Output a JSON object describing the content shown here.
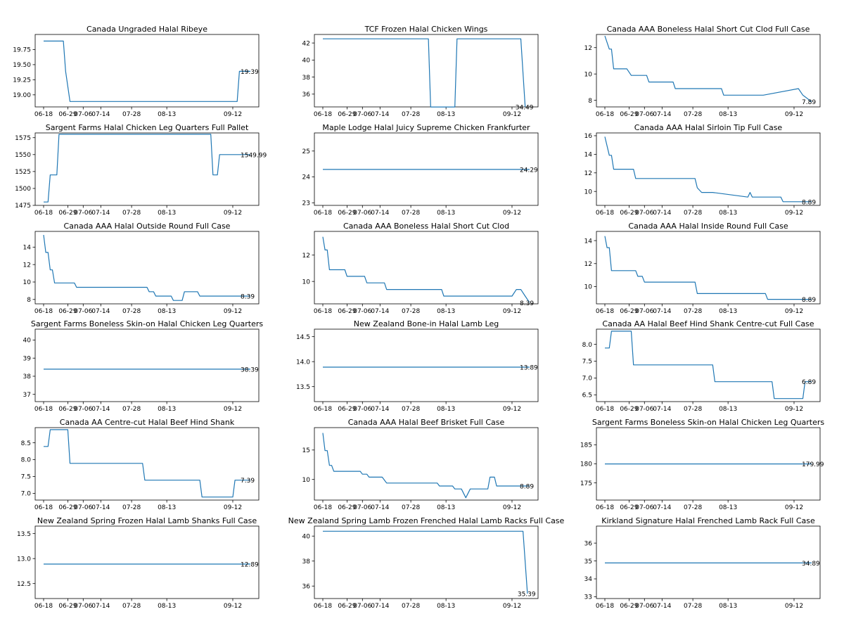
{
  "figure": {
    "line_color": "#1f77b4"
  },
  "chart_data": [
    {
      "type": "line",
      "title": "Canada Ungraded Halal Ribeye",
      "x_ticks": [
        "06-18",
        "06-29",
        "07-06",
        "07-14",
        "07-28",
        "08-13",
        "09-12"
      ],
      "ylim": [
        18.8,
        20.0
      ],
      "y_ticks": [
        19.0,
        19.25,
        19.5,
        19.75
      ],
      "y_decimals": 2,
      "end_label": "19.39",
      "x": [
        "06-18",
        "06-27",
        "06-28",
        "06-30",
        "09-14",
        "09-15",
        "09-20"
      ],
      "y": [
        19.89,
        19.89,
        19.39,
        18.89,
        18.89,
        19.39,
        19.39
      ]
    },
    {
      "type": "line",
      "title": "TCF Frozen Halal Chicken Wings",
      "x_ticks": [
        "06-18",
        "06-29",
        "07-06",
        "07-14",
        "07-28",
        "08-13",
        "09-12"
      ],
      "ylim": [
        34.5,
        43.0
      ],
      "y_ticks": [
        36,
        38,
        40,
        42
      ],
      "y_decimals": 0,
      "end_label": "34.49",
      "x": [
        "06-18",
        "08-05",
        "08-06",
        "08-17",
        "08-18",
        "09-16",
        "09-18"
      ],
      "y": [
        42.49,
        42.49,
        34.49,
        34.49,
        42.49,
        42.49,
        34.49
      ]
    },
    {
      "type": "line",
      "title": "Canada AAA Boneless Halal Short Cut Clod Full Case",
      "x_ticks": [
        "06-18",
        "06-29",
        "07-06",
        "07-14",
        "07-28",
        "08-13",
        "09-12"
      ],
      "ylim": [
        7.5,
        13.0
      ],
      "y_ticks": [
        8,
        10,
        12
      ],
      "y_decimals": 0,
      "end_label": "7.89",
      "x": [
        "06-18",
        "06-20",
        "06-21",
        "06-22",
        "06-28",
        "06-30",
        "07-07",
        "07-08",
        "07-19",
        "07-20",
        "08-10",
        "08-11",
        "08-29",
        "09-14",
        "09-16",
        "09-20"
      ],
      "y": [
        12.89,
        11.89,
        11.89,
        10.39,
        10.39,
        9.89,
        9.89,
        9.39,
        9.39,
        8.89,
        8.89,
        8.39,
        8.39,
        8.89,
        8.39,
        7.89
      ]
    },
    {
      "type": "line",
      "title": "Sargent Farms Halal Chicken Leg Quarters Full Pallet",
      "x_ticks": [
        "06-18",
        "06-29",
        "07-06",
        "07-14",
        "07-28",
        "08-13",
        "09-12"
      ],
      "ylim": [
        1475,
        1582
      ],
      "y_ticks": [
        1475,
        1500,
        1525,
        1550,
        1575
      ],
      "y_decimals": 0,
      "end_label": "1549.99",
      "x": [
        "06-18",
        "06-20",
        "06-21",
        "06-24",
        "06-25",
        "09-02",
        "09-03",
        "09-05",
        "09-06",
        "09-20"
      ],
      "y": [
        1479.99,
        1479.99,
        1519.99,
        1519.99,
        1579.99,
        1579.99,
        1519.99,
        1519.99,
        1549.99,
        1549.99
      ]
    },
    {
      "type": "line",
      "title": "Maple Lodge Halal Juicy Supreme Chicken Frankfurter",
      "x_ticks": [
        "06-18",
        "06-29",
        "07-06",
        "07-14",
        "07-28",
        "08-13",
        "09-12"
      ],
      "ylim": [
        22.9,
        25.7
      ],
      "y_ticks": [
        23,
        24,
        25
      ],
      "y_decimals": 0,
      "end_label": "24.29",
      "x": [
        "06-18",
        "09-20"
      ],
      "y": [
        24.29,
        24.29
      ]
    },
    {
      "type": "line",
      "title": "Canada AAA Halal Sirloin Tip Full Case",
      "x_ticks": [
        "06-18",
        "06-29",
        "07-06",
        "07-14",
        "07-28",
        "08-13",
        "09-12"
      ],
      "ylim": [
        8.5,
        16.3
      ],
      "y_ticks": [
        10,
        12,
        14,
        16
      ],
      "y_decimals": 0,
      "end_label": "8.89",
      "x": [
        "06-18",
        "06-20",
        "06-21",
        "06-22",
        "06-23",
        "07-01",
        "07-02",
        "07-29",
        "07-30",
        "08-01",
        "08-06",
        "08-22",
        "08-23",
        "08-24",
        "08-25",
        "09-06",
        "09-07",
        "09-20"
      ],
      "y": [
        15.89,
        13.89,
        13.89,
        12.39,
        12.39,
        12.39,
        11.39,
        11.39,
        10.39,
        9.89,
        9.89,
        9.39,
        9.89,
        9.39,
        9.39,
        9.39,
        8.89,
        8.89
      ]
    },
    {
      "type": "line",
      "title": "Canada AAA Halal Outside Round Full Case",
      "x_ticks": [
        "06-18",
        "06-29",
        "07-06",
        "07-14",
        "07-28",
        "08-13",
        "09-12"
      ],
      "ylim": [
        7.5,
        15.8
      ],
      "y_ticks": [
        8,
        10,
        12,
        14
      ],
      "y_decimals": 0,
      "end_label": "8.39",
      "x": [
        "06-18",
        "06-19",
        "06-20",
        "06-21",
        "06-22",
        "06-23",
        "07-02",
        "07-03",
        "08-04",
        "08-05",
        "08-07",
        "08-08",
        "08-15",
        "08-16",
        "08-20",
        "08-21",
        "08-27",
        "08-28",
        "09-20"
      ],
      "y": [
        15.39,
        13.39,
        13.39,
        11.39,
        11.39,
        9.89,
        9.89,
        9.39,
        9.39,
        8.89,
        8.89,
        8.39,
        8.39,
        7.89,
        7.89,
        8.89,
        8.89,
        8.39,
        8.39
      ]
    },
    {
      "type": "line",
      "title": "Canada AAA Boneless Halal Short Cut Clod",
      "x_ticks": [
        "06-18",
        "06-29",
        "07-06",
        "07-14",
        "07-28",
        "08-13",
        "09-12"
      ],
      "ylim": [
        8.3,
        13.8
      ],
      "y_ticks": [
        10,
        12
      ],
      "y_decimals": 0,
      "end_label": "8.39",
      "x": [
        "06-18",
        "06-19",
        "06-20",
        "06-21",
        "06-28",
        "06-29",
        "07-07",
        "07-08",
        "07-16",
        "07-17",
        "08-11",
        "08-12",
        "09-12",
        "09-14",
        "09-16",
        "09-18",
        "09-20"
      ],
      "y": [
        13.39,
        12.39,
        12.39,
        10.89,
        10.89,
        10.39,
        10.39,
        9.89,
        9.89,
        9.39,
        9.39,
        8.89,
        8.89,
        9.39,
        9.39,
        8.89,
        8.39
      ]
    },
    {
      "type": "line",
      "title": "Canada AAA Halal Inside Round Full Case",
      "x_ticks": [
        "06-18",
        "06-29",
        "07-06",
        "07-14",
        "07-28",
        "08-13",
        "09-12"
      ],
      "ylim": [
        8.5,
        14.8
      ],
      "y_ticks": [
        10,
        12,
        14
      ],
      "y_decimals": 0,
      "end_label": "8.89",
      "x": [
        "06-18",
        "06-19",
        "06-20",
        "06-21",
        "07-02",
        "07-03",
        "07-05",
        "07-06",
        "07-29",
        "07-30",
        "08-30",
        "08-31",
        "09-20"
      ],
      "y": [
        14.39,
        13.39,
        13.39,
        11.39,
        11.39,
        10.89,
        10.89,
        10.39,
        10.39,
        9.39,
        9.39,
        8.89,
        8.89
      ]
    },
    {
      "type": "line",
      "title": "Sargent Farms Boneless Skin-on Halal Chicken Leg Quarters",
      "x_ticks": [
        "06-18",
        "06-29",
        "07-06",
        "07-14",
        "07-28",
        "08-13",
        "09-12"
      ],
      "ylim": [
        36.6,
        40.6
      ],
      "y_ticks": [
        37,
        38,
        39,
        40
      ],
      "y_decimals": 0,
      "end_label": "38.39",
      "x": [
        "06-18",
        "09-20"
      ],
      "y": [
        38.39,
        38.39
      ]
    },
    {
      "type": "line",
      "title": "New Zealand Bone-in Halal Lamb Leg",
      "x_ticks": [
        "06-18",
        "06-29",
        "07-06",
        "07-14",
        "07-28",
        "08-13",
        "09-12"
      ],
      "ylim": [
        13.2,
        14.65
      ],
      "y_ticks": [
        13.5,
        14.0,
        14.5
      ],
      "y_decimals": 1,
      "end_label": "13.89",
      "x": [
        "06-18",
        "09-20"
      ],
      "y": [
        13.89,
        13.89
      ]
    },
    {
      "type": "line",
      "title": "Canada AA Halal Beef Hind Shank Centre-cut Full Case",
      "x_ticks": [
        "06-18",
        "06-29",
        "07-06",
        "07-14",
        "07-28",
        "08-13",
        "09-12"
      ],
      "ylim": [
        6.3,
        8.45
      ],
      "y_ticks": [
        6.5,
        7.0,
        7.5,
        8.0
      ],
      "y_decimals": 1,
      "end_label": "6.89",
      "x": [
        "06-18",
        "06-20",
        "06-21",
        "06-30",
        "07-01",
        "08-06",
        "08-07",
        "09-02",
        "09-03",
        "09-16",
        "09-17",
        "09-20"
      ],
      "y": [
        7.89,
        7.89,
        8.39,
        8.39,
        7.39,
        7.39,
        6.89,
        6.89,
        6.39,
        6.39,
        6.89,
        6.89
      ]
    },
    {
      "type": "line",
      "title": "Canada AA Centre-cut Halal Beef Hind Shank",
      "x_ticks": [
        "06-18",
        "06-29",
        "07-06",
        "07-14",
        "07-28",
        "08-13",
        "09-12"
      ],
      "ylim": [
        6.8,
        8.95
      ],
      "y_ticks": [
        7.0,
        7.5,
        8.0,
        8.5
      ],
      "y_decimals": 1,
      "end_label": "7.39",
      "x": [
        "06-18",
        "06-20",
        "06-21",
        "06-29",
        "06-30",
        "08-02",
        "08-03",
        "08-28",
        "08-29",
        "09-12",
        "09-13",
        "09-20"
      ],
      "y": [
        8.39,
        8.39,
        8.89,
        8.89,
        7.89,
        7.89,
        7.39,
        7.39,
        6.89,
        6.89,
        7.39,
        7.39
      ]
    },
    {
      "type": "line",
      "title": "Canada AAA Halal Beef Brisket Full Case",
      "x_ticks": [
        "06-18",
        "06-29",
        "07-06",
        "07-14",
        "07-28",
        "08-13",
        "09-12"
      ],
      "ylim": [
        6.5,
        18.8
      ],
      "y_ticks": [
        10,
        15
      ],
      "y_decimals": 0,
      "end_label": "8.89",
      "x": [
        "06-18",
        "06-19",
        "06-20",
        "06-21",
        "06-22",
        "06-23",
        "06-24",
        "07-05",
        "07-06",
        "07-08",
        "07-09",
        "07-15",
        "07-16",
        "07-17",
        "08-09",
        "08-10",
        "08-16",
        "08-17",
        "08-20",
        "08-22",
        "08-24",
        "09-01",
        "09-02",
        "09-04",
        "09-05",
        "09-06",
        "09-07",
        "09-20"
      ],
      "y": [
        17.89,
        14.89,
        14.89,
        12.39,
        12.39,
        11.39,
        11.39,
        11.39,
        10.89,
        10.89,
        10.39,
        10.39,
        9.89,
        9.39,
        9.39,
        8.89,
        8.89,
        8.39,
        8.39,
        6.89,
        8.39,
        8.39,
        10.39,
        10.39,
        8.89,
        8.89,
        8.89,
        8.89
      ]
    },
    {
      "type": "line",
      "title": "Sargent Farms Boneless Skin-on Halal Chicken Leg Quarters",
      "x_ticks": [
        "06-18",
        "06-29",
        "07-06",
        "07-14",
        "07-28",
        "08-13",
        "09-12"
      ],
      "ylim": [
        170.5,
        189.5
      ],
      "y_ticks": [
        175,
        180,
        185
      ],
      "y_decimals": 0,
      "end_label": "179.99",
      "x": [
        "06-18",
        "09-20"
      ],
      "y": [
        179.99,
        179.99
      ]
    },
    {
      "type": "line",
      "title": "New Zealand Spring Frozen Halal Lamb Shanks Full Case",
      "x_ticks": [
        "06-18",
        "06-29",
        "07-06",
        "07-14",
        "07-28",
        "08-13",
        "09-12"
      ],
      "ylim": [
        12.2,
        13.65
      ],
      "y_ticks": [
        12.5,
        13.0,
        13.5
      ],
      "y_decimals": 1,
      "end_label": "12.89",
      "x": [
        "06-18",
        "09-20"
      ],
      "y": [
        12.89,
        12.89
      ]
    },
    {
      "type": "line",
      "title": "New Zealand Spring Lamb Frozen Frenched Halal Lamb Racks Full Case",
      "x_ticks": [
        "06-18",
        "06-29",
        "07-06",
        "07-14",
        "07-28",
        "08-13",
        "09-12"
      ],
      "ylim": [
        35.0,
        40.8
      ],
      "y_ticks": [
        36,
        38,
        40
      ],
      "y_decimals": 0,
      "end_label": "35.39",
      "x": [
        "06-18",
        "09-17",
        "09-19"
      ],
      "y": [
        40.39,
        40.39,
        35.39
      ]
    },
    {
      "type": "line",
      "title": "Kirkland Signature Halal Frenched Lamb Rack Full Case",
      "x_ticks": [
        "06-18",
        "06-29",
        "07-06",
        "07-14",
        "07-28",
        "08-13",
        "09-12"
      ],
      "ylim": [
        32.9,
        36.95
      ],
      "y_ticks": [
        33,
        34,
        35,
        36
      ],
      "y_decimals": 0,
      "end_label": "34.89",
      "x": [
        "06-18",
        "09-20"
      ],
      "y": [
        34.89,
        34.89
      ]
    }
  ]
}
